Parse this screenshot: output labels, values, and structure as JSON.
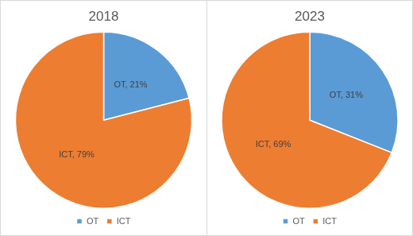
{
  "chart_data": [
    {
      "type": "pie",
      "title": "2018",
      "categories": [
        "OT",
        "ICT"
      ],
      "values": [
        21,
        79
      ],
      "value_labels": [
        "OT, 21%",
        "ICT, 79%"
      ],
      "colors": [
        "#5b9bd5",
        "#ed7d31"
      ],
      "data_labels": true,
      "legend": "bottom"
    },
    {
      "type": "pie",
      "title": "2023",
      "categories": [
        "OT",
        "ICT"
      ],
      "values": [
        31,
        69
      ],
      "value_labels": [
        "OT, 31%",
        "ICT, 69%"
      ],
      "colors": [
        "#5b9bd5",
        "#ed7d31"
      ],
      "data_labels": true,
      "legend": "bottom"
    }
  ]
}
